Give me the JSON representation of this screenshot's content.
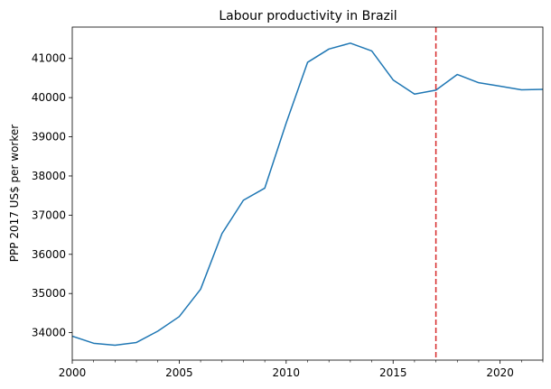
{
  "chart_data": {
    "type": "line",
    "title": "Labour productivity in Brazil",
    "xlabel": "",
    "ylabel": "PPP 2017 US$ per worker",
    "xlim": [
      2000,
      2022
    ],
    "ylim": [
      33300,
      41800
    ],
    "xticks": [
      2000,
      2005,
      2010,
      2015,
      2020
    ],
    "xticks_minor": [
      2001,
      2002,
      2003,
      2004,
      2006,
      2007,
      2008,
      2009,
      2011,
      2012,
      2013,
      2014,
      2016,
      2017,
      2018,
      2019,
      2021,
      2022
    ],
    "yticks": [
      34000,
      35000,
      36000,
      37000,
      38000,
      39000,
      40000,
      41000
    ],
    "grid": false,
    "series": [
      {
        "color": "#1f77b4",
        "x": [
          2000,
          2001,
          2002,
          2003,
          2004,
          2005,
          2006,
          2007,
          2008,
          2009,
          2010,
          2011,
          2012,
          2013,
          2014,
          2015,
          2016,
          2017,
          2018,
          2019,
          2020,
          2021,
          2022
        ],
        "y": [
          33910,
          33730,
          33680,
          33750,
          34040,
          34410,
          35110,
          36530,
          37380,
          37690,
          39350,
          40900,
          41240,
          41390,
          41190,
          40450,
          40090,
          40190,
          40590,
          40380,
          40290,
          40200,
          40210
        ]
      }
    ],
    "vline": {
      "x": 2017,
      "color": "#d62728",
      "style": "dashed"
    }
  }
}
